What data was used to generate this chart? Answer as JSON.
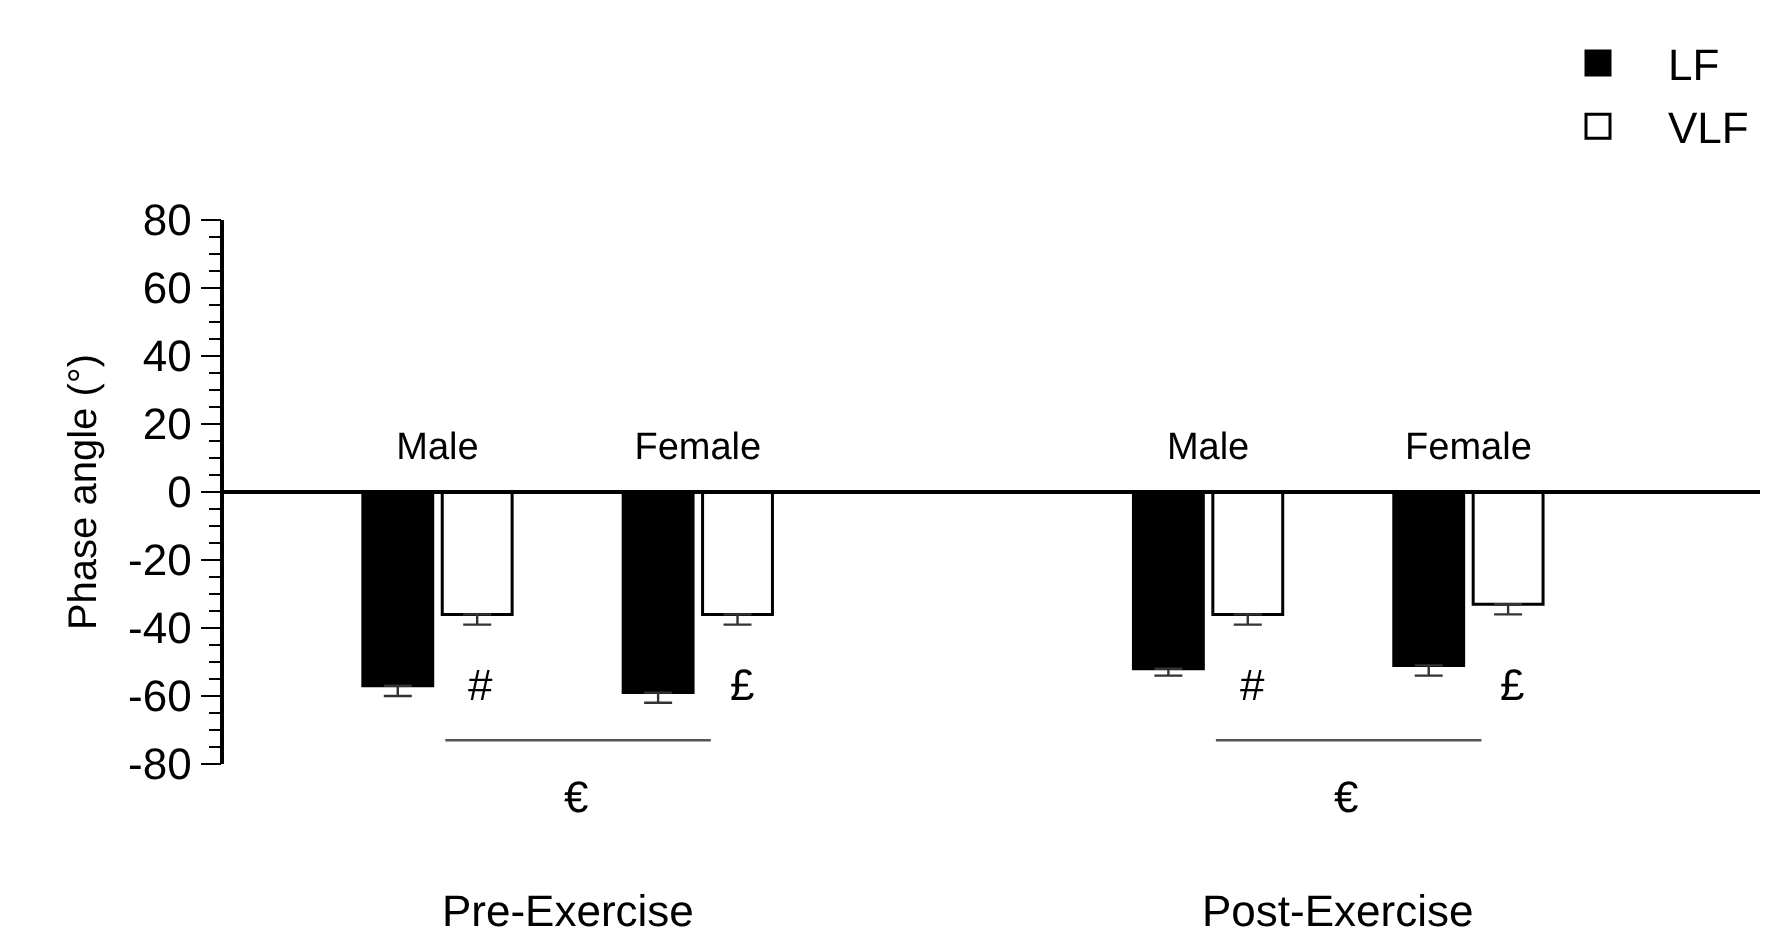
{
  "chart_data": {
    "type": "bar",
    "ylabel": "Phase angle (°)",
    "categories": [
      "Male",
      "Female",
      "Male",
      "Female"
    ],
    "series": [
      {
        "name": "LF",
        "color": "#000000",
        "values": [
          -57,
          -59,
          -52,
          -51
        ],
        "errors": [
          [
            -60,
            -57
          ],
          [
            -62,
            -59
          ],
          [
            -54,
            -52
          ],
          [
            -54,
            -51
          ]
        ]
      },
      {
        "name": "VLF",
        "color": "#ffffff",
        "values": [
          -36,
          -36,
          -36,
          -33
        ],
        "errors": [
          [
            -39,
            -36
          ],
          [
            -39,
            -36
          ],
          [
            -39,
            -36
          ],
          [
            -36,
            -33
          ]
        ]
      }
    ],
    "ylim": [
      -80,
      80
    ],
    "yticks": [
      -80,
      -60,
      -40,
      -20,
      0,
      20,
      40,
      60,
      80
    ],
    "grid": false,
    "legend": "top right",
    "annotations": [
      "Pre-Exercise",
      "Post-Exercise",
      "#",
      "£",
      "€",
      "#",
      "£",
      "€"
    ]
  }
}
